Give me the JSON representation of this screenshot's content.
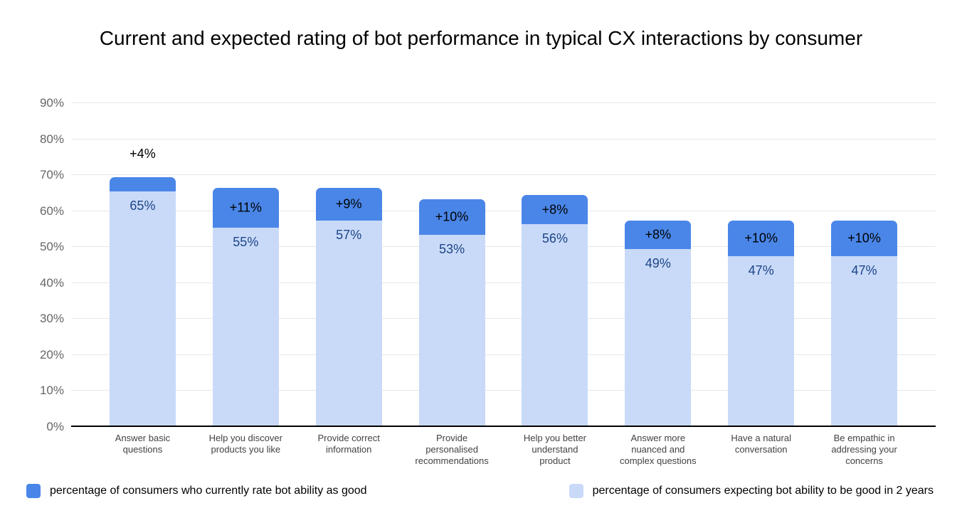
{
  "title": "Current and expected rating of bot performance in typical CX interactions by consumer",
  "legend": {
    "items": [
      {
        "label": "percentage of consumers who currently rate bot ability as good",
        "color": "#4a86e8"
      },
      {
        "label": "percentage of consumers expecting bot ability to be good in 2 years",
        "color": "#c9daf8"
      }
    ]
  },
  "chart_data": {
    "type": "bar",
    "subtype": "stacked-column",
    "title": "Current and expected rating of bot performance in typical CX interactions by consumer",
    "categories": [
      "Answer basic questions",
      "Help you discover products you like",
      "Provide correct information",
      "Provide personalised recommendations",
      "Help you better understand product",
      "Answer more nuanced and complex questions",
      "Have a natural conversation",
      "Be empathic in addressing your concerns"
    ],
    "category_lines": [
      [
        "Answer basic",
        "questions"
      ],
      [
        "Help you discover",
        "products you like"
      ],
      [
        "Provide correct",
        "information"
      ],
      [
        "Provide",
        "personalised",
        "recommendations"
      ],
      [
        "Help you better",
        "understand",
        "product"
      ],
      [
        "Answer more",
        "nuanced and",
        "complex questions"
      ],
      [
        "Have a natural",
        "conversation"
      ],
      [
        "Be empathic in",
        "addressing your",
        "concerns"
      ]
    ],
    "series": [
      {
        "name": "percentage of consumers who currently rate bot ability as good",
        "color": "#4a86e8",
        "role": "delta-cap"
      },
      {
        "name": "percentage of consumers expecting bot ability to be good in 2 years",
        "color": "#c9daf8",
        "role": "base"
      }
    ],
    "bars": [
      {
        "base": 65,
        "base_label": "65%",
        "delta": 4,
        "delta_label": "+4%",
        "delta_label_placement": "above"
      },
      {
        "base": 55,
        "base_label": "55%",
        "delta": 11,
        "delta_label": "+11%",
        "delta_label_placement": "inside"
      },
      {
        "base": 57,
        "base_label": "57%",
        "delta": 9,
        "delta_label": "+9%",
        "delta_label_placement": "inside"
      },
      {
        "base": 53,
        "base_label": "53%",
        "delta": 10,
        "delta_label": "+10%",
        "delta_label_placement": "inside"
      },
      {
        "base": 56,
        "base_label": "56%",
        "delta": 8,
        "delta_label": "+8%",
        "delta_label_placement": "inside"
      },
      {
        "base": 49,
        "base_label": "49%",
        "delta": 8,
        "delta_label": "+8%",
        "delta_label_placement": "inside"
      },
      {
        "base": 47,
        "base_label": "47%",
        "delta": 10,
        "delta_label": "+10%",
        "delta_label_placement": "inside"
      },
      {
        "base": 47,
        "base_label": "47%",
        "delta": 10,
        "delta_label": "+10%",
        "delta_label_placement": "inside"
      }
    ],
    "y_axis": {
      "min": 0,
      "max": 90,
      "step": 10,
      "tick_labels": [
        "0%",
        "10%",
        "20%",
        "30%",
        "40%",
        "50%",
        "60%",
        "70%",
        "80%",
        "90%"
      ]
    },
    "colors": {
      "base_segment": "#c9daf8",
      "delta_segment": "#4a86e8",
      "base_label_text": "#1c4587",
      "delta_label_text": "#000000",
      "grid_line": "#e7e7e7",
      "axis_line": "#000000",
      "tick_text": "#666666",
      "category_text": "#424242"
    },
    "grid": true,
    "legend_position": "bottom"
  }
}
